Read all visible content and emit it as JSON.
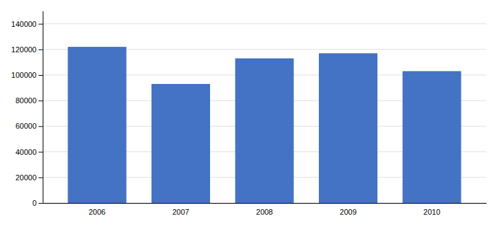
{
  "chart_data": {
    "type": "bar",
    "categories": [
      "2006",
      "2007",
      "2008",
      "2009",
      "2010"
    ],
    "values": [
      122000,
      93000,
      113000,
      117000,
      103000
    ],
    "color": "#4472C4",
    "ylim": [
      0,
      150000
    ],
    "yticks": [
      0,
      20000,
      40000,
      60000,
      80000,
      100000,
      120000,
      140000
    ],
    "grid": true
  }
}
